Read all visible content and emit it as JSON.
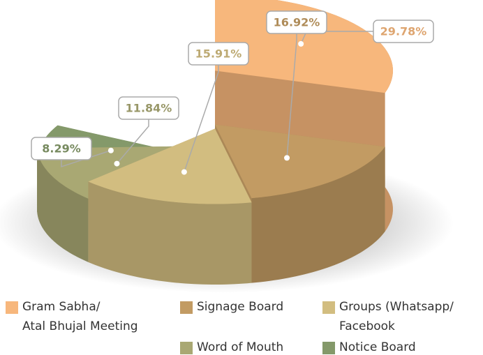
{
  "chart_data": {
    "type": "pie",
    "categories": [
      "Gram Sabha/\nAtal Bhujal Meeting",
      "Signage Board",
      "Groups (Whatsapp/\nFacebook",
      "Word of Mouth",
      "Notice Board"
    ],
    "values": [
      29.78,
      16.92,
      15.91,
      11.84,
      8.29
    ],
    "value_labels": [
      "29.78%",
      "16.92%",
      "15.91%",
      "11.84%",
      "8.29%"
    ],
    "colors": [
      "#f7b77c",
      "#c29b63",
      "#d2bd80",
      "#a9a873",
      "#84996a"
    ]
  }
}
